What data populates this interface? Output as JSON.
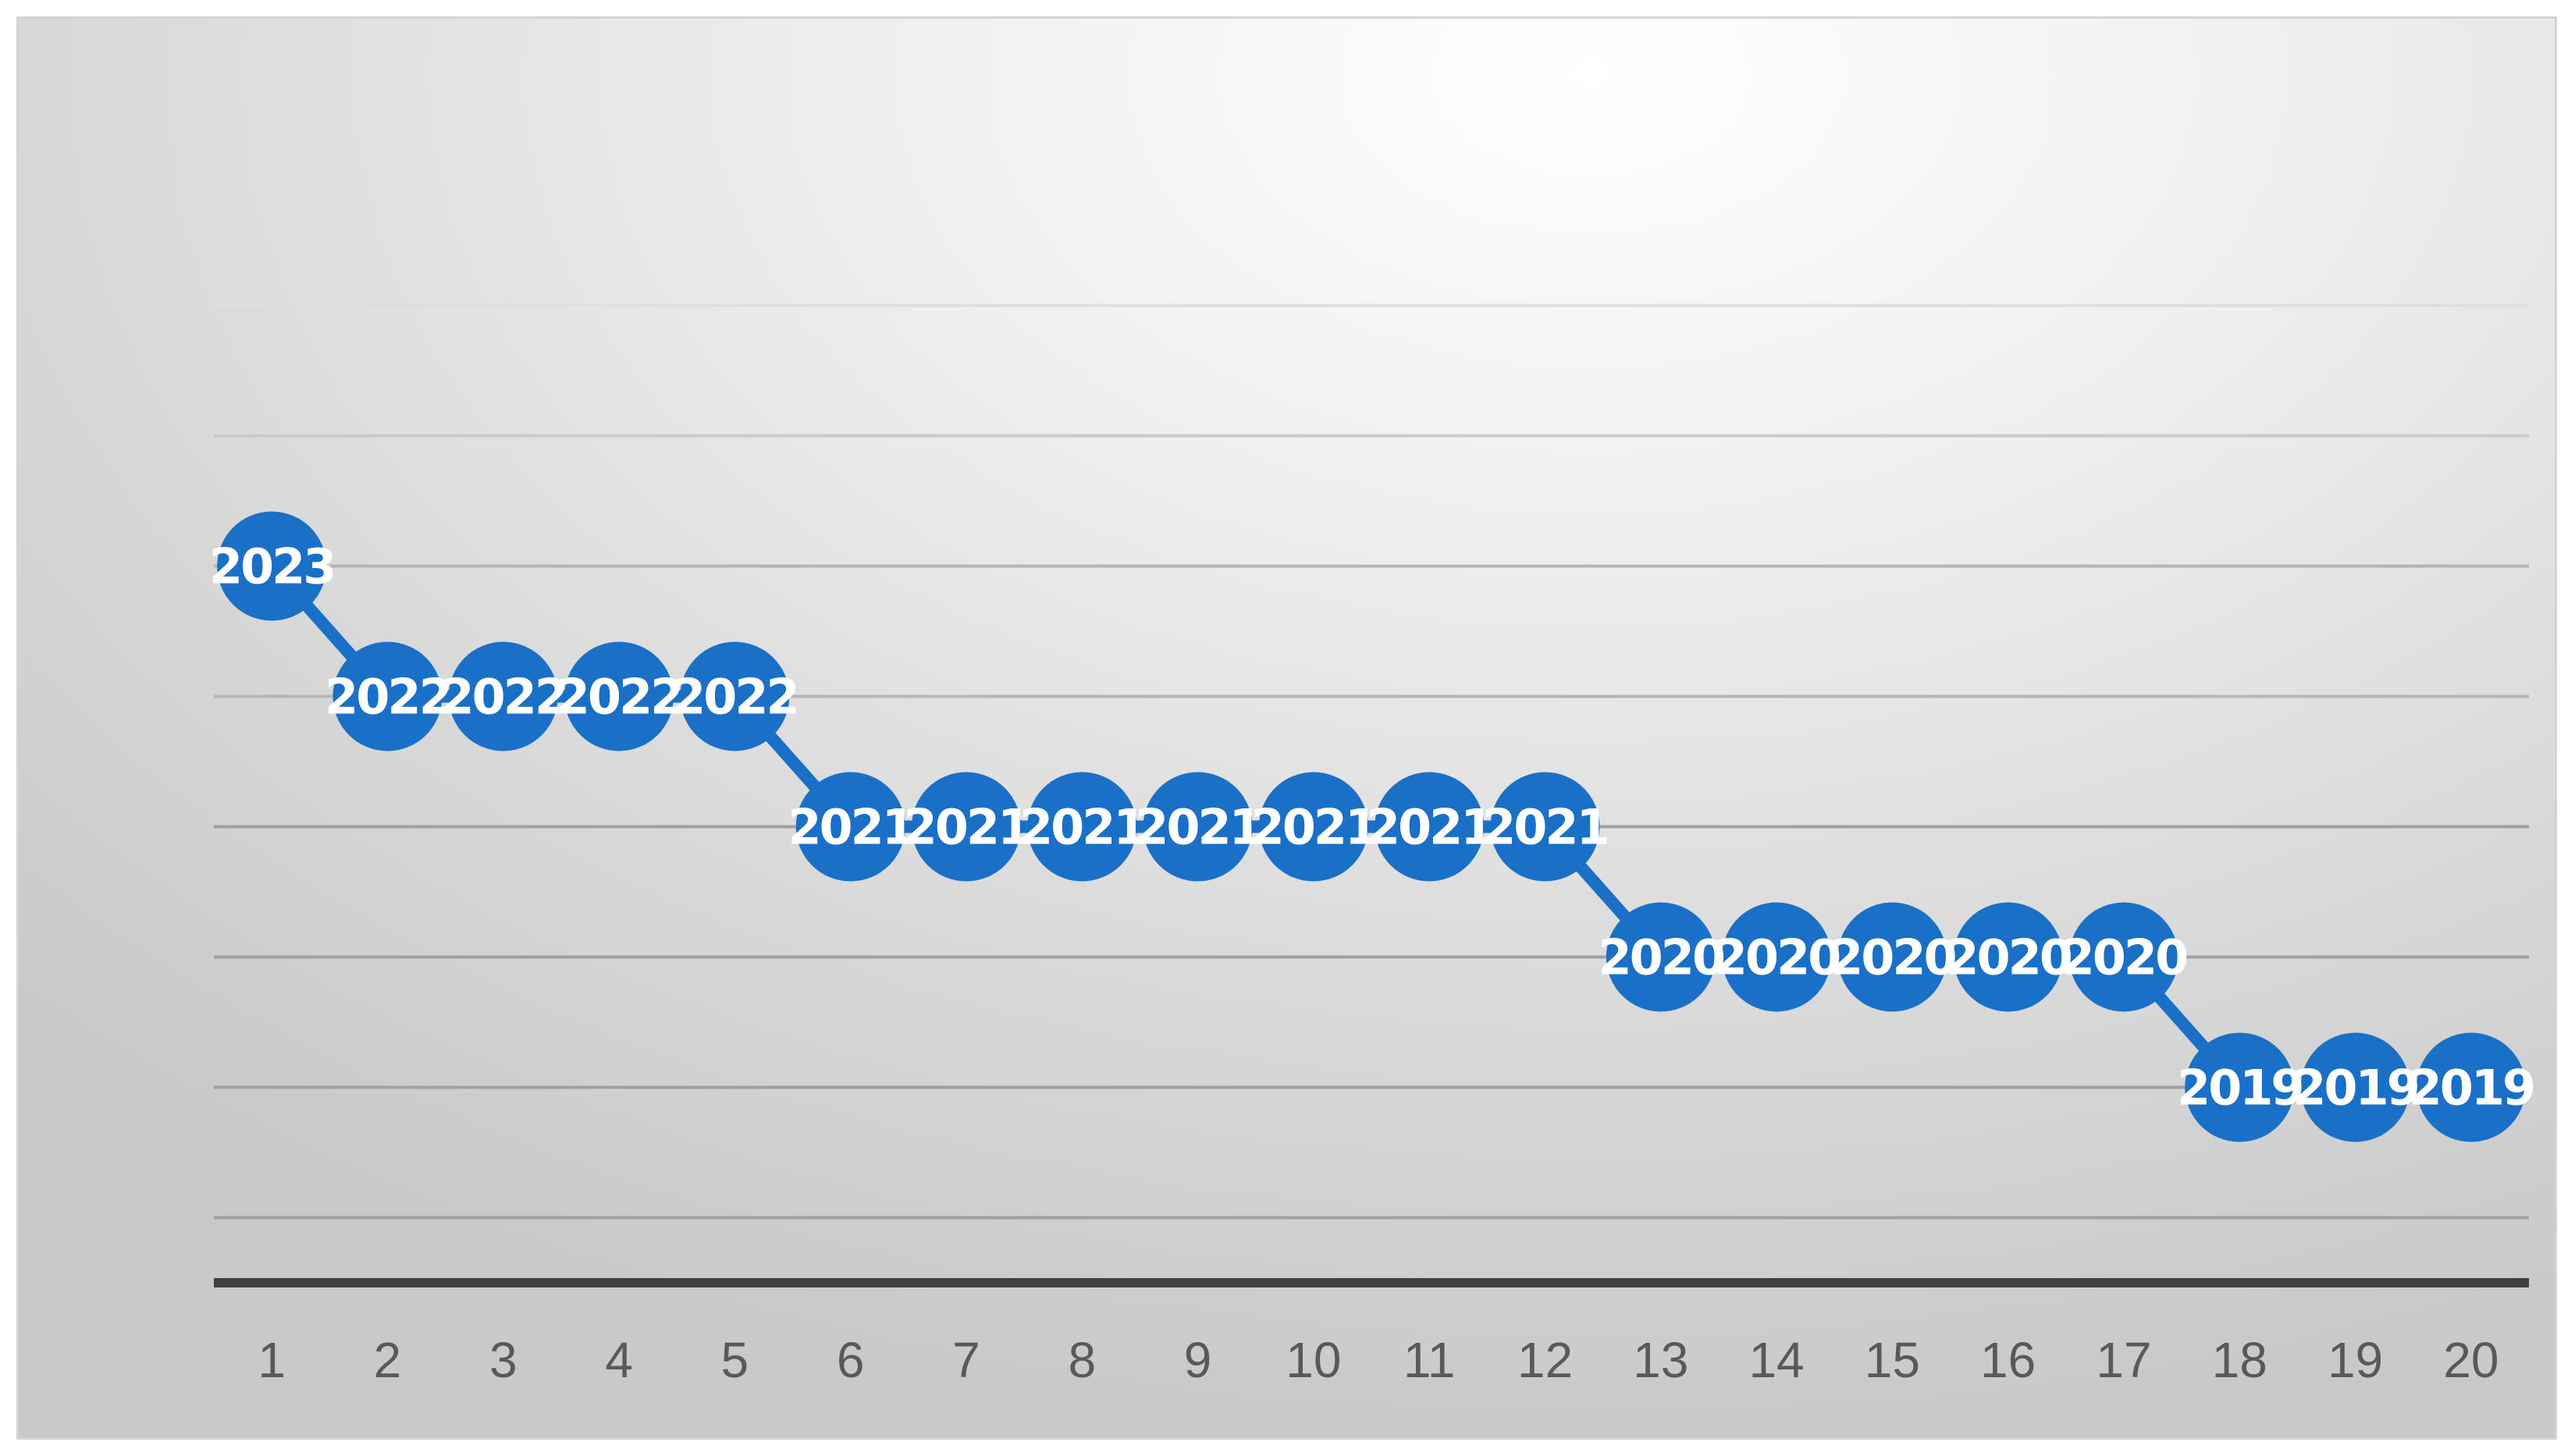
{
  "chart_data": {
    "type": "line",
    "x": [
      "1",
      "2",
      "3",
      "4",
      "5",
      "6",
      "7",
      "8",
      "9",
      "10",
      "11",
      "12",
      "13",
      "14",
      "15",
      "16",
      "17",
      "18",
      "19",
      "20"
    ],
    "series": [
      {
        "values": [
          2023,
          2022,
          2022,
          2022,
          2022,
          2021,
          2021,
          2021,
          2021,
          2021,
          2021,
          2021,
          2020,
          2020,
          2020,
          2020,
          2020,
          2019,
          2019,
          2019
        ],
        "data_labels": true
      }
    ],
    "ylim": [
      2017.5,
      2025.5
    ],
    "y_ticks_visible": false,
    "grid": true,
    "legend": "none",
    "colors": {
      "series": "#1a6fc7",
      "grid": "#a3a3a3",
      "axis": "#404040",
      "tick_text": "#595959",
      "label_text": "#ffffff"
    }
  }
}
